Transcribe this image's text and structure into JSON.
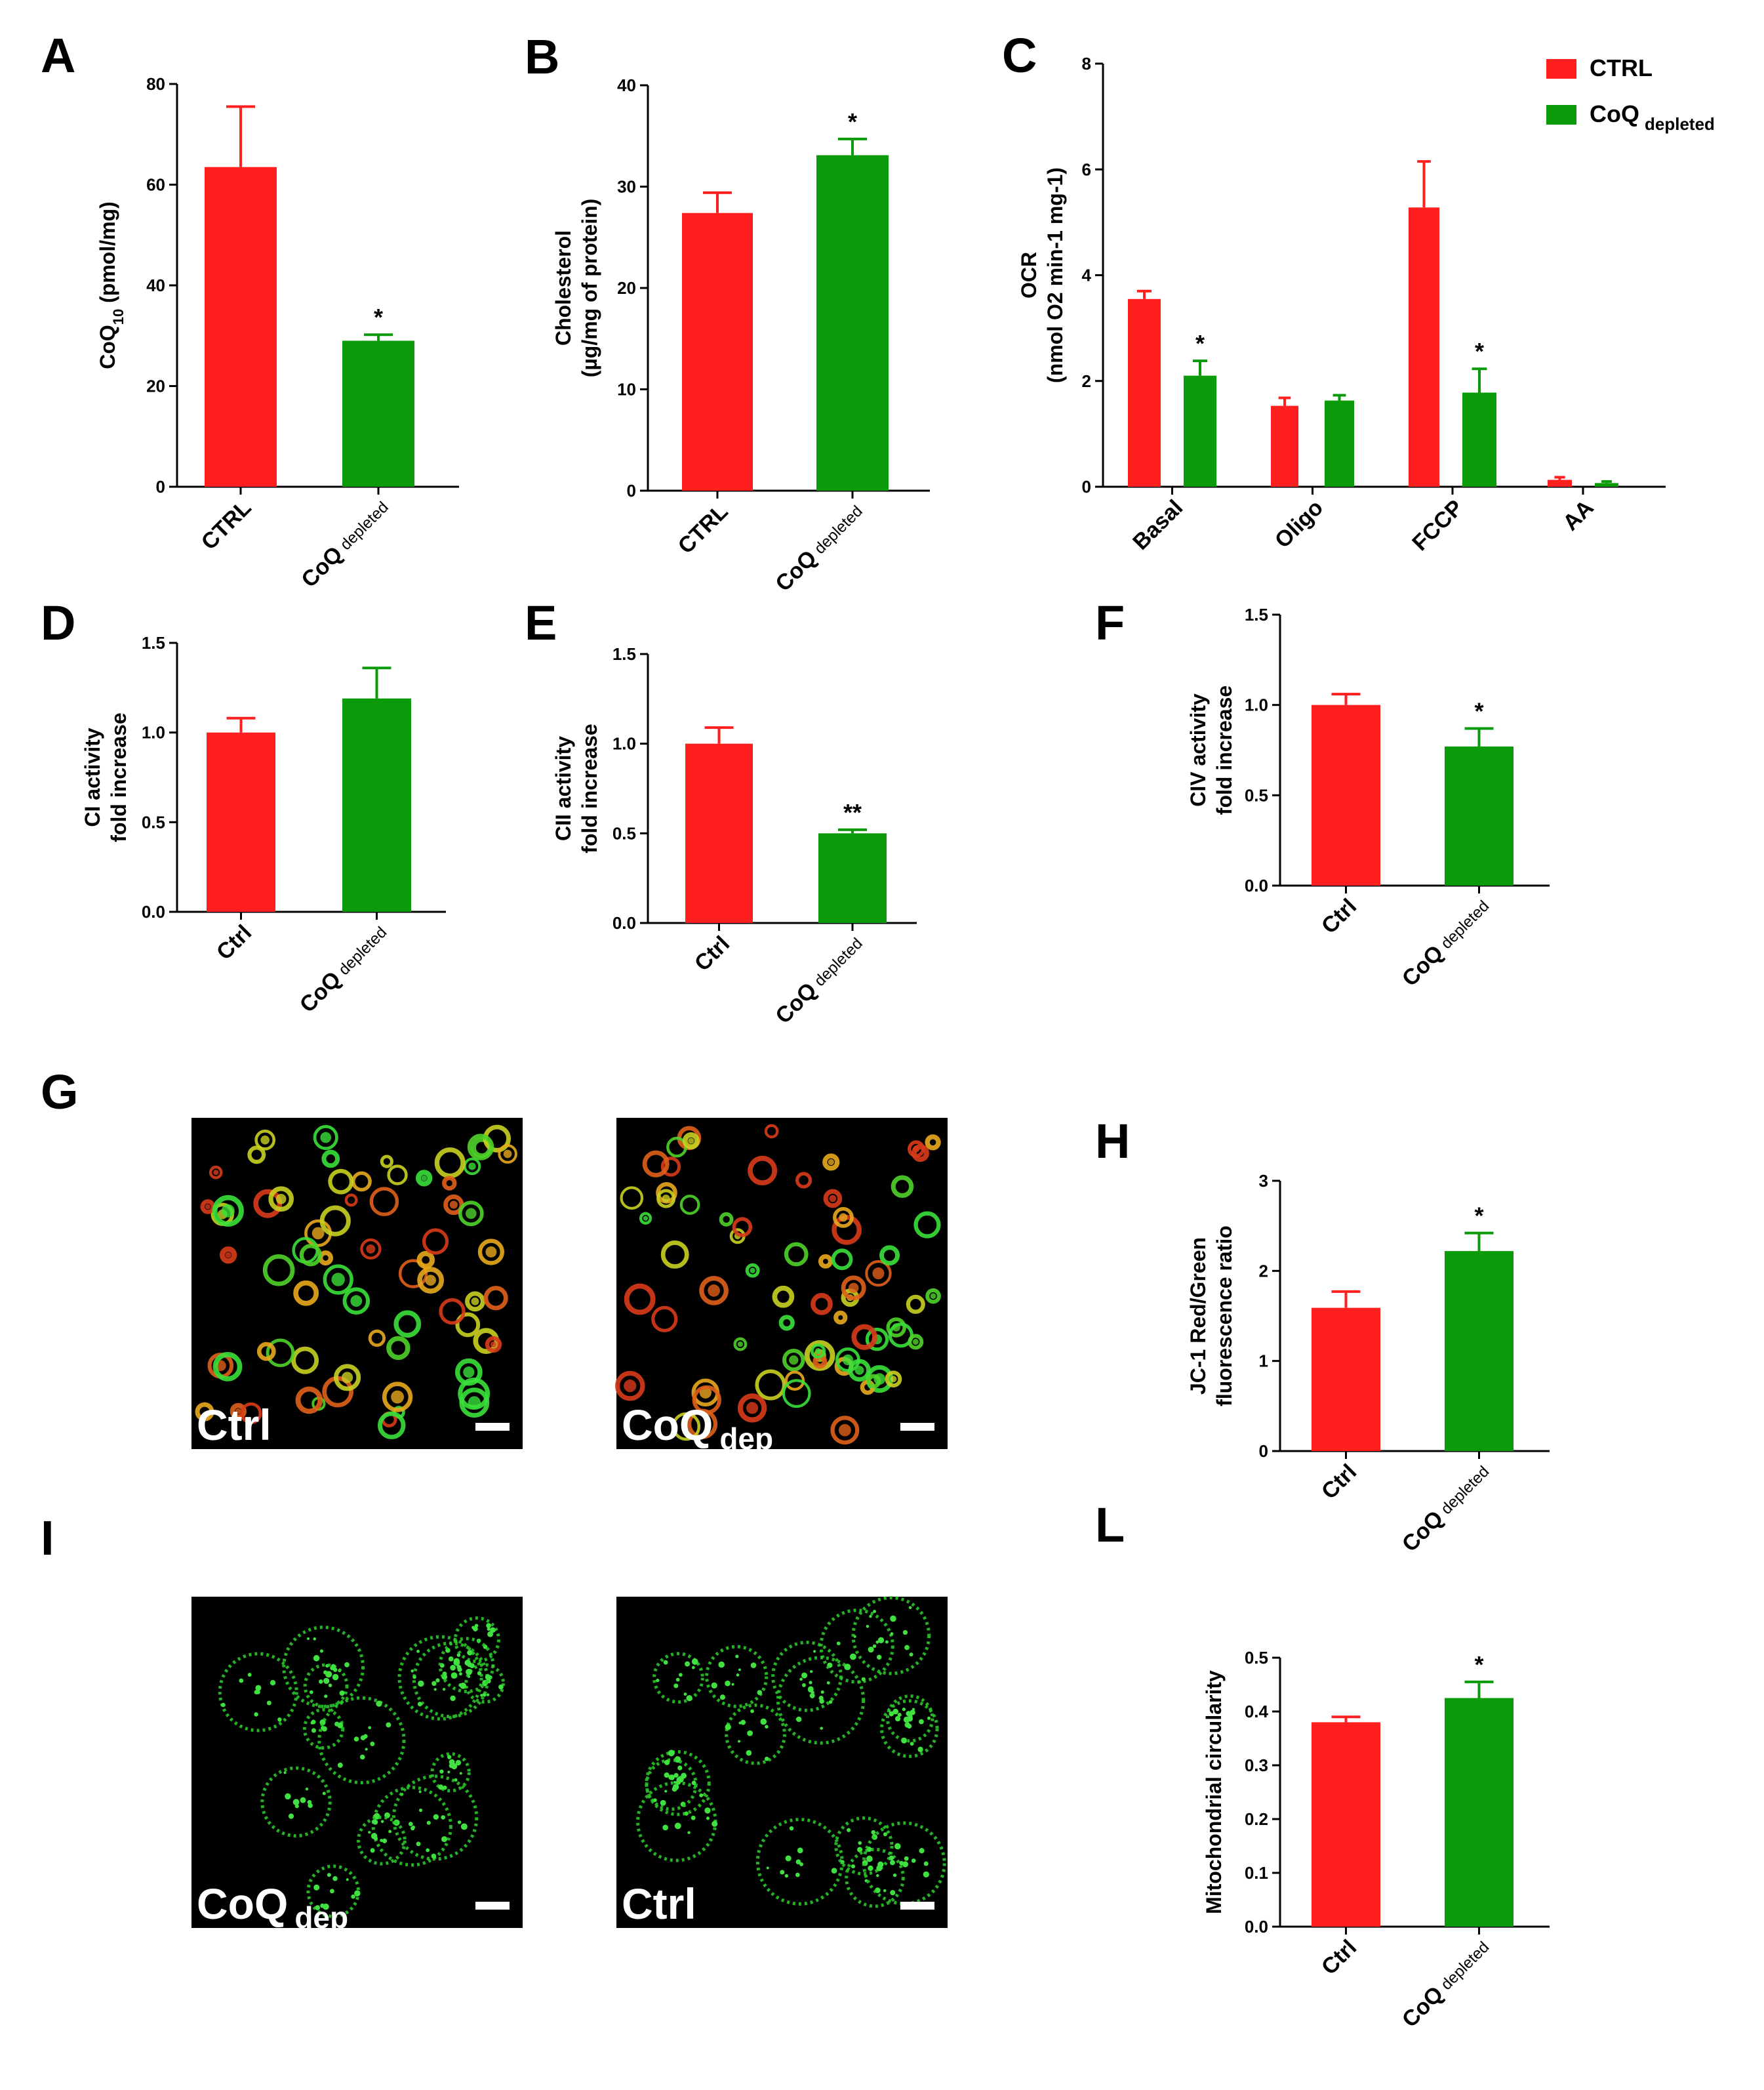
{
  "colors": {
    "ctrl": "#ff1f1f",
    "coq": "#0a9a0a",
    "axis": "#000000",
    "micrograph_bg": "#000000"
  },
  "legend": {
    "placement": "top-right",
    "items": [
      {
        "label": "CTRL",
        "sub": "",
        "color": "#ff1f1f"
      },
      {
        "label": "CoQ",
        "sub": "depleted",
        "color": "#0a9a0a"
      }
    ]
  },
  "chart_data": [
    {
      "id": "A",
      "panel_label": "A",
      "type": "bar",
      "ylabel": [
        "CoQ",
        "10",
        " (pmol/mg)"
      ],
      "ylim": [
        0,
        80
      ],
      "yticks": [
        "0",
        "20",
        "40",
        "60",
        "80"
      ],
      "categories": [
        {
          "main": "CTRL",
          "sub": ""
        },
        {
          "main": "CoQ",
          "sub": "depleted"
        }
      ],
      "values": [
        63.5,
        29
      ],
      "errors": [
        12,
        1.2
      ],
      "annotations": [
        "",
        "*"
      ]
    },
    {
      "id": "B",
      "panel_label": "B",
      "type": "bar",
      "ylabel": [
        "Cholesterol",
        "(µg/mg of protein)"
      ],
      "ylim": [
        0,
        40
      ],
      "yticks": [
        "0",
        "10",
        "20",
        "30",
        "40"
      ],
      "categories": [
        {
          "main": "CTRL",
          "sub": ""
        },
        {
          "main": "CoQ",
          "sub": "depleted"
        }
      ],
      "values": [
        27.4,
        33.1
      ],
      "errors": [
        2,
        1.6
      ],
      "annotations": [
        "",
        "*"
      ]
    },
    {
      "id": "C",
      "panel_label": "C",
      "type": "bar",
      "ylabel": [
        "OCR",
        "(nmol O2 min-1 mg-1)"
      ],
      "ylim": [
        0,
        8
      ],
      "yticks": [
        "0",
        "2",
        "4",
        "6",
        "8"
      ],
      "categories": [
        "Basal",
        "Oligo",
        "FCCP",
        "AA"
      ],
      "series": [
        {
          "name": "CTRL",
          "values": [
            3.55,
            1.53,
            5.28,
            0.13
          ],
          "errors": [
            0.15,
            0.15,
            0.87,
            0.05
          ],
          "annotations": [
            "",
            "",
            "",
            ""
          ]
        },
        {
          "name": "CoQ depleted",
          "values": [
            2.1,
            1.63,
            1.78,
            0.07
          ],
          "errors": [
            0.28,
            0.1,
            0.45,
            0.03
          ],
          "annotations": [
            "*",
            "",
            "*",
            ""
          ]
        }
      ]
    },
    {
      "id": "D",
      "panel_label": "D",
      "type": "bar",
      "ylabel": [
        "CI activity",
        "fold increase"
      ],
      "ylim": [
        0,
        1.5
      ],
      "yticks": [
        "0.0",
        "0.5",
        "1.0",
        "1.5"
      ],
      "categories": [
        {
          "main": "Ctrl",
          "sub": ""
        },
        {
          "main": "CoQ",
          "sub": "depleted"
        }
      ],
      "values": [
        1.0,
        1.19
      ],
      "errors": [
        0.08,
        0.17
      ],
      "annotations": [
        "",
        ""
      ]
    },
    {
      "id": "E",
      "panel_label": "E",
      "type": "bar",
      "ylabel": [
        "CII activity",
        "fold increase"
      ],
      "ylim": [
        0,
        1.5
      ],
      "yticks": [
        "0.0",
        "0.5",
        "1.0",
        "1.5"
      ],
      "categories": [
        {
          "main": "Ctrl",
          "sub": ""
        },
        {
          "main": "CoQ",
          "sub": "depleted"
        }
      ],
      "values": [
        1.0,
        0.5
      ],
      "errors": [
        0.09,
        0.02
      ],
      "annotations": [
        "",
        "**"
      ]
    },
    {
      "id": "F",
      "panel_label": "F",
      "type": "bar",
      "ylabel": [
        "CIV activity",
        "fold increase"
      ],
      "ylim": [
        0,
        1.5
      ],
      "yticks": [
        "0.0",
        "0.5",
        "1.0",
        "1.5"
      ],
      "categories": [
        {
          "main": "Ctrl",
          "sub": ""
        },
        {
          "main": "CoQ",
          "sub": "depleted"
        }
      ],
      "values": [
        1.0,
        0.77
      ],
      "errors": [
        0.06,
        0.1
      ],
      "annotations": [
        "",
        "*"
      ]
    },
    {
      "id": "H",
      "panel_label": "H",
      "type": "bar",
      "ylabel": [
        "JC-1 Red/Green",
        "fluorescence ratio"
      ],
      "ylim": [
        0,
        3
      ],
      "yticks": [
        "0",
        "1",
        "2",
        "3"
      ],
      "categories": [
        {
          "main": "Ctrl",
          "sub": ""
        },
        {
          "main": "CoQ",
          "sub": "depleted"
        }
      ],
      "values": [
        1.59,
        2.22
      ],
      "errors": [
        0.18,
        0.2
      ],
      "annotations": [
        "",
        "*"
      ]
    },
    {
      "id": "L",
      "panel_label": "L",
      "type": "bar",
      "ylabel": [
        "Mitochondrial circularity"
      ],
      "ylim": [
        0,
        0.5
      ],
      "yticks": [
        "0.0",
        "0.1",
        "0.2",
        "0.3",
        "0.4",
        "0.5"
      ],
      "categories": [
        {
          "main": "Ctrl",
          "sub": ""
        },
        {
          "main": "CoQ",
          "sub": "depleted"
        }
      ],
      "values": [
        0.38,
        0.425
      ],
      "errors": [
        0.01,
        0.03
      ],
      "annotations": [
        "",
        "*"
      ]
    }
  ],
  "micrographs": {
    "G": {
      "panel_label": "G",
      "kind": "JC-1 merged red/green",
      "images": [
        {
          "label": "Ctrl",
          "sub": ""
        },
        {
          "label": "CoQ",
          "sub": "dep"
        }
      ]
    },
    "I": {
      "panel_label": "I",
      "kind": "mitochondria green",
      "images": [
        {
          "label": "CoQ",
          "sub": "dep"
        },
        {
          "label": "Ctrl",
          "sub": ""
        }
      ]
    }
  }
}
